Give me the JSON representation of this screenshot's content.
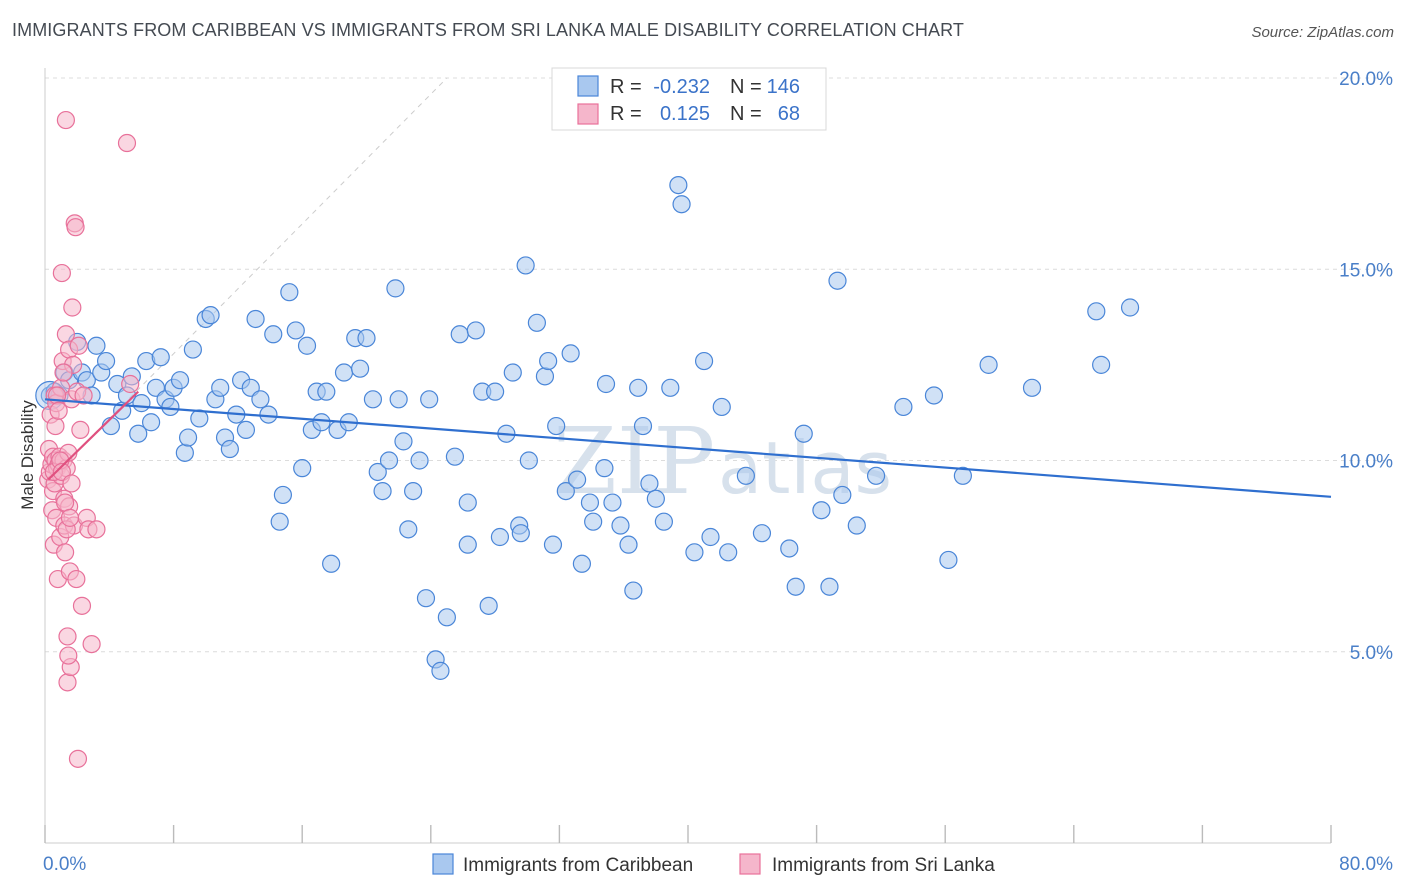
{
  "title": "IMMIGRANTS FROM CARIBBEAN VS IMMIGRANTS FROM SRI LANKA MALE DISABILITY CORRELATION CHART",
  "source": "Source: ZipAtlas.com",
  "watermark": {
    "part1": "ZIP",
    "part2": "atlas"
  },
  "colors": {
    "blue": "#4a86d8",
    "blue_fill": "#a9c8ef",
    "blue_line": "#2f6fcf",
    "pink": "#e8719a",
    "pink_fill": "#f5b6cb",
    "pink_line": "#e0507f",
    "tick_text": "#4a7fc8",
    "grid": "#dcdcdc"
  },
  "legend": {
    "rows": [
      {
        "r_label": "R =",
        "r_value": "-0.232",
        "n_label": "N =",
        "n_value": "146"
      },
      {
        "r_label": "R =",
        "r_value": "0.125",
        "n_label": "N =",
        "n_value": "68"
      }
    ]
  },
  "bottom_legend": [
    "Immigrants from Caribbean",
    "Immigrants from Sri Lanka"
  ],
  "chart_data": {
    "type": "scatter",
    "title": "IMMIGRANTS FROM CARIBBEAN VS IMMIGRANTS FROM SRI LANKA MALE DISABILITY CORRELATION CHART",
    "xlabel": "",
    "ylabel": "Male Disability",
    "xlim": [
      0,
      80
    ],
    "ylim": [
      0,
      20
    ],
    "x_tick_labels": [
      "0.0%",
      "80.0%"
    ],
    "y_ticks": [
      5,
      10,
      15,
      20
    ],
    "y_tick_labels": [
      "5.0%",
      "10.0%",
      "15.0%",
      "20.0%"
    ],
    "grid": "horizontal dashed",
    "legend_position": "top-center",
    "series": [
      {
        "name": "Immigrants from Caribbean",
        "r": -0.232,
        "n": 146,
        "trend": [
          [
            0,
            11.6
          ],
          [
            80,
            9.05
          ]
        ],
        "points": [
          [
            0.3,
            11.7
          ],
          [
            0.6,
            11.8
          ],
          [
            0.9,
            11.7
          ],
          [
            1.2,
            12.3
          ],
          [
            1.5,
            12.1
          ],
          [
            2.0,
            13.1
          ],
          [
            2.3,
            12.3
          ],
          [
            2.6,
            12.1
          ],
          [
            2.9,
            11.7
          ],
          [
            3.2,
            13.0
          ],
          [
            3.5,
            12.3
          ],
          [
            3.8,
            12.6
          ],
          [
            4.1,
            10.9
          ],
          [
            4.5,
            12.0
          ],
          [
            4.8,
            11.3
          ],
          [
            5.1,
            11.7
          ],
          [
            5.4,
            12.2
          ],
          [
            5.8,
            10.7
          ],
          [
            6.0,
            11.5
          ],
          [
            6.3,
            12.6
          ],
          [
            6.6,
            11.0
          ],
          [
            6.9,
            11.9
          ],
          [
            7.2,
            12.7
          ],
          [
            7.5,
            11.6
          ],
          [
            7.8,
            11.4
          ],
          [
            8.0,
            11.9
          ],
          [
            8.4,
            12.1
          ],
          [
            8.7,
            10.2
          ],
          [
            8.9,
            10.6
          ],
          [
            9.2,
            12.9
          ],
          [
            9.6,
            11.1
          ],
          [
            10.0,
            13.7
          ],
          [
            10.3,
            13.8
          ],
          [
            10.6,
            11.6
          ],
          [
            10.9,
            11.9
          ],
          [
            11.2,
            10.6
          ],
          [
            11.5,
            10.3
          ],
          [
            11.9,
            11.2
          ],
          [
            12.2,
            12.1
          ],
          [
            12.5,
            10.8
          ],
          [
            12.8,
            11.9
          ],
          [
            13.1,
            13.7
          ],
          [
            13.4,
            11.6
          ],
          [
            13.9,
            11.2
          ],
          [
            14.2,
            13.3
          ],
          [
            14.6,
            8.4
          ],
          [
            14.8,
            9.1
          ],
          [
            15.2,
            14.4
          ],
          [
            15.6,
            13.4
          ],
          [
            16.0,
            9.8
          ],
          [
            16.3,
            13.0
          ],
          [
            16.6,
            10.8
          ],
          [
            16.9,
            11.8
          ],
          [
            17.2,
            11.0
          ],
          [
            17.5,
            11.8
          ],
          [
            17.8,
            7.3
          ],
          [
            18.2,
            10.8
          ],
          [
            18.6,
            12.3
          ],
          [
            18.9,
            11.0
          ],
          [
            19.3,
            13.2
          ],
          [
            19.6,
            12.4
          ],
          [
            20.0,
            13.2
          ],
          [
            20.4,
            11.6
          ],
          [
            20.7,
            9.7
          ],
          [
            21.0,
            9.2
          ],
          [
            21.4,
            10.0
          ],
          [
            21.8,
            14.5
          ],
          [
            22.0,
            11.6
          ],
          [
            22.3,
            10.5
          ],
          [
            22.6,
            8.2
          ],
          [
            22.9,
            9.2
          ],
          [
            23.3,
            10.0
          ],
          [
            23.9,
            11.6
          ],
          [
            23.7,
            6.4
          ],
          [
            24.3,
            4.8
          ],
          [
            24.6,
            4.5
          ],
          [
            25.0,
            5.9
          ],
          [
            25.5,
            10.1
          ],
          [
            25.8,
            13.3
          ],
          [
            26.3,
            8.9
          ],
          [
            26.8,
            13.4
          ],
          [
            26.3,
            7.8
          ],
          [
            27.2,
            11.8
          ],
          [
            27.6,
            6.2
          ],
          [
            28.0,
            11.8
          ],
          [
            28.3,
            8.0
          ],
          [
            28.7,
            10.7
          ],
          [
            29.1,
            12.3
          ],
          [
            29.5,
            8.3
          ],
          [
            29.6,
            8.1
          ],
          [
            29.9,
            15.1
          ],
          [
            30.1,
            10.0
          ],
          [
            30.6,
            13.6
          ],
          [
            31.1,
            12.2
          ],
          [
            31.3,
            12.6
          ],
          [
            31.6,
            7.8
          ],
          [
            31.8,
            10.9
          ],
          [
            32.4,
            9.2
          ],
          [
            32.7,
            12.8
          ],
          [
            33.1,
            9.5
          ],
          [
            33.4,
            7.3
          ],
          [
            33.9,
            8.9
          ],
          [
            34.1,
            8.4
          ],
          [
            34.8,
            9.8
          ],
          [
            34.9,
            12.0
          ],
          [
            35.3,
            8.9
          ],
          [
            35.8,
            8.3
          ],
          [
            36.3,
            7.8
          ],
          [
            36.6,
            6.6
          ],
          [
            36.9,
            11.9
          ],
          [
            37.2,
            10.9
          ],
          [
            37.6,
            9.4
          ],
          [
            38.0,
            9.0
          ],
          [
            38.5,
            8.4
          ],
          [
            38.9,
            11.9
          ],
          [
            39.4,
            17.2
          ],
          [
            39.6,
            16.7
          ],
          [
            40.4,
            7.6
          ],
          [
            41.0,
            12.6
          ],
          [
            41.4,
            8.0
          ],
          [
            42.1,
            11.4
          ],
          [
            42.5,
            7.6
          ],
          [
            43.6,
            9.6
          ],
          [
            44.6,
            8.1
          ],
          [
            46.3,
            7.7
          ],
          [
            46.7,
            6.7
          ],
          [
            47.2,
            10.7
          ],
          [
            48.3,
            8.7
          ],
          [
            48.8,
            6.7
          ],
          [
            49.3,
            14.7
          ],
          [
            49.6,
            9.1
          ],
          [
            50.5,
            8.3
          ],
          [
            51.7,
            9.6
          ],
          [
            53.4,
            11.4
          ],
          [
            55.3,
            11.7
          ],
          [
            56.2,
            7.4
          ],
          [
            57.1,
            9.6
          ],
          [
            58.7,
            12.5
          ],
          [
            61.4,
            11.9
          ],
          [
            65.4,
            13.9
          ],
          [
            65.7,
            12.5
          ],
          [
            67.5,
            14.0
          ]
        ]
      },
      {
        "name": "Immigrants from Sri Lanka",
        "r": 0.125,
        "n": 68,
        "trend": [
          [
            0.2,
            9.5
          ],
          [
            5.8,
            11.8
          ]
        ],
        "points": [
          [
            0.2,
            9.5
          ],
          [
            0.25,
            10.3
          ],
          [
            0.3,
            9.7
          ],
          [
            0.35,
            11.2
          ],
          [
            0.4,
            9.9
          ],
          [
            0.45,
            8.7
          ],
          [
            0.5,
            10.1
          ],
          [
            0.5,
            9.2
          ],
          [
            0.55,
            7.8
          ],
          [
            0.6,
            11.7
          ],
          [
            0.6,
            9.4
          ],
          [
            0.65,
            10.0
          ],
          [
            0.7,
            8.5
          ],
          [
            0.7,
            11.5
          ],
          [
            0.75,
            9.8
          ],
          [
            0.8,
            6.9
          ],
          [
            0.85,
            9.9
          ],
          [
            0.9,
            10.1
          ],
          [
            0.95,
            8.0
          ],
          [
            1.0,
            9.6
          ],
          [
            1.0,
            11.9
          ],
          [
            1.05,
            14.9
          ],
          [
            1.1,
            12.6
          ],
          [
            1.15,
            10.0
          ],
          [
            1.2,
            9.0
          ],
          [
            1.2,
            8.3
          ],
          [
            1.25,
            7.6
          ],
          [
            1.3,
            13.3
          ],
          [
            1.3,
            18.9
          ],
          [
            1.35,
            9.8
          ],
          [
            1.4,
            5.4
          ],
          [
            1.4,
            4.2
          ],
          [
            1.45,
            10.2
          ],
          [
            1.5,
            12.9
          ],
          [
            1.5,
            8.8
          ],
          [
            1.55,
            7.1
          ],
          [
            1.6,
            4.6
          ],
          [
            1.65,
            11.6
          ],
          [
            1.7,
            14.0
          ],
          [
            1.75,
            12.5
          ],
          [
            1.8,
            8.3
          ],
          [
            1.85,
            16.2
          ],
          [
            1.9,
            16.1
          ],
          [
            1.95,
            6.9
          ],
          [
            2.0,
            11.8
          ],
          [
            2.05,
            2.2
          ],
          [
            2.1,
            13.0
          ],
          [
            2.2,
            10.8
          ],
          [
            2.3,
            6.2
          ],
          [
            2.4,
            11.7
          ],
          [
            2.6,
            8.5
          ],
          [
            2.7,
            8.2
          ],
          [
            2.9,
            5.2
          ],
          [
            3.2,
            8.2
          ],
          [
            5.1,
            18.3
          ],
          [
            5.3,
            12.0
          ],
          [
            0.55,
            9.7
          ],
          [
            0.65,
            10.9
          ],
          [
            0.75,
            11.7
          ],
          [
            0.85,
            11.3
          ],
          [
            0.95,
            10.0
          ],
          [
            1.05,
            9.7
          ],
          [
            1.15,
            12.3
          ],
          [
            1.25,
            8.9
          ],
          [
            1.35,
            8.2
          ],
          [
            1.45,
            4.9
          ],
          [
            1.55,
            8.5
          ],
          [
            1.65,
            9.4
          ]
        ]
      }
    ]
  }
}
